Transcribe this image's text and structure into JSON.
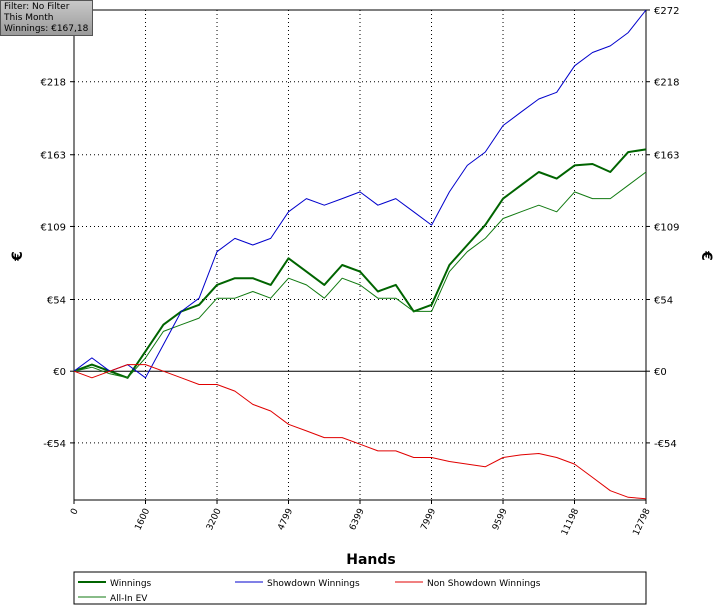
{
  "info": {
    "filter": "Filter: No Filter",
    "period": "This Month",
    "winnings": "Winnings: €167,18"
  },
  "chart_data": {
    "type": "line",
    "x_label": "Hands",
    "y_label": "€",
    "x": [
      0,
      400,
      800,
      1200,
      1600,
      2000,
      2400,
      2800,
      3200,
      3600,
      4000,
      4400,
      4800,
      5200,
      5600,
      6000,
      6400,
      6800,
      7200,
      7600,
      8000,
      8400,
      8800,
      9200,
      9600,
      10000,
      10400,
      10800,
      11200,
      11600,
      12000,
      12400,
      12798
    ],
    "series": [
      {
        "name": "Winnings",
        "color": "#006400",
        "values": [
          0,
          5,
          0,
          -5,
          15,
          35,
          45,
          50,
          65,
          70,
          70,
          65,
          85,
          75,
          65,
          80,
          75,
          60,
          65,
          45,
          50,
          80,
          95,
          110,
          130,
          140,
          150,
          145,
          155,
          156,
          150,
          165,
          167
        ]
      },
      {
        "name": "All-In EV",
        "color": "#117a11",
        "values": [
          0,
          3,
          -2,
          -5,
          10,
          30,
          35,
          40,
          55,
          55,
          60,
          55,
          70,
          65,
          55,
          70,
          65,
          55,
          55,
          45,
          45,
          75,
          90,
          100,
          115,
          120,
          125,
          120,
          135,
          130,
          130,
          140,
          150
        ]
      },
      {
        "name": "Showdown Winnings",
        "color": "#0000cc",
        "values": [
          0,
          10,
          0,
          5,
          -5,
          20,
          45,
          55,
          90,
          100,
          95,
          100,
          120,
          130,
          125,
          130,
          135,
          125,
          130,
          120,
          110,
          135,
          155,
          165,
          185,
          195,
          205,
          210,
          230,
          240,
          245,
          255,
          272
        ]
      },
      {
        "name": "Non Showdown Winnings",
        "color": "#e00000",
        "values": [
          0,
          -5,
          0,
          5,
          5,
          0,
          -5,
          -10,
          -10,
          -15,
          -25,
          -30,
          -40,
          -45,
          -50,
          -50,
          -55,
          -60,
          -60,
          -65,
          -65,
          -68,
          -70,
          -72,
          -65,
          -63,
          -62,
          -65,
          -70,
          -80,
          -90,
          -95,
          -96
        ]
      }
    ],
    "xlim": [
      0,
      12798
    ],
    "xticks": [
      0,
      1600,
      3200,
      4799,
      6399,
      7999,
      9599,
      11198,
      12798
    ],
    "ylim": [
      -97,
      272
    ],
    "yticks": [
      {
        "value": -54,
        "label": "-€54"
      },
      {
        "value": 0,
        "label": "€0"
      },
      {
        "value": 54,
        "label": "€54"
      },
      {
        "value": 109,
        "label": "€109"
      },
      {
        "value": 163,
        "label": "€163"
      },
      {
        "value": 218,
        "label": "€218"
      },
      {
        "value": 272,
        "label": "€272"
      }
    ],
    "grid": true
  }
}
